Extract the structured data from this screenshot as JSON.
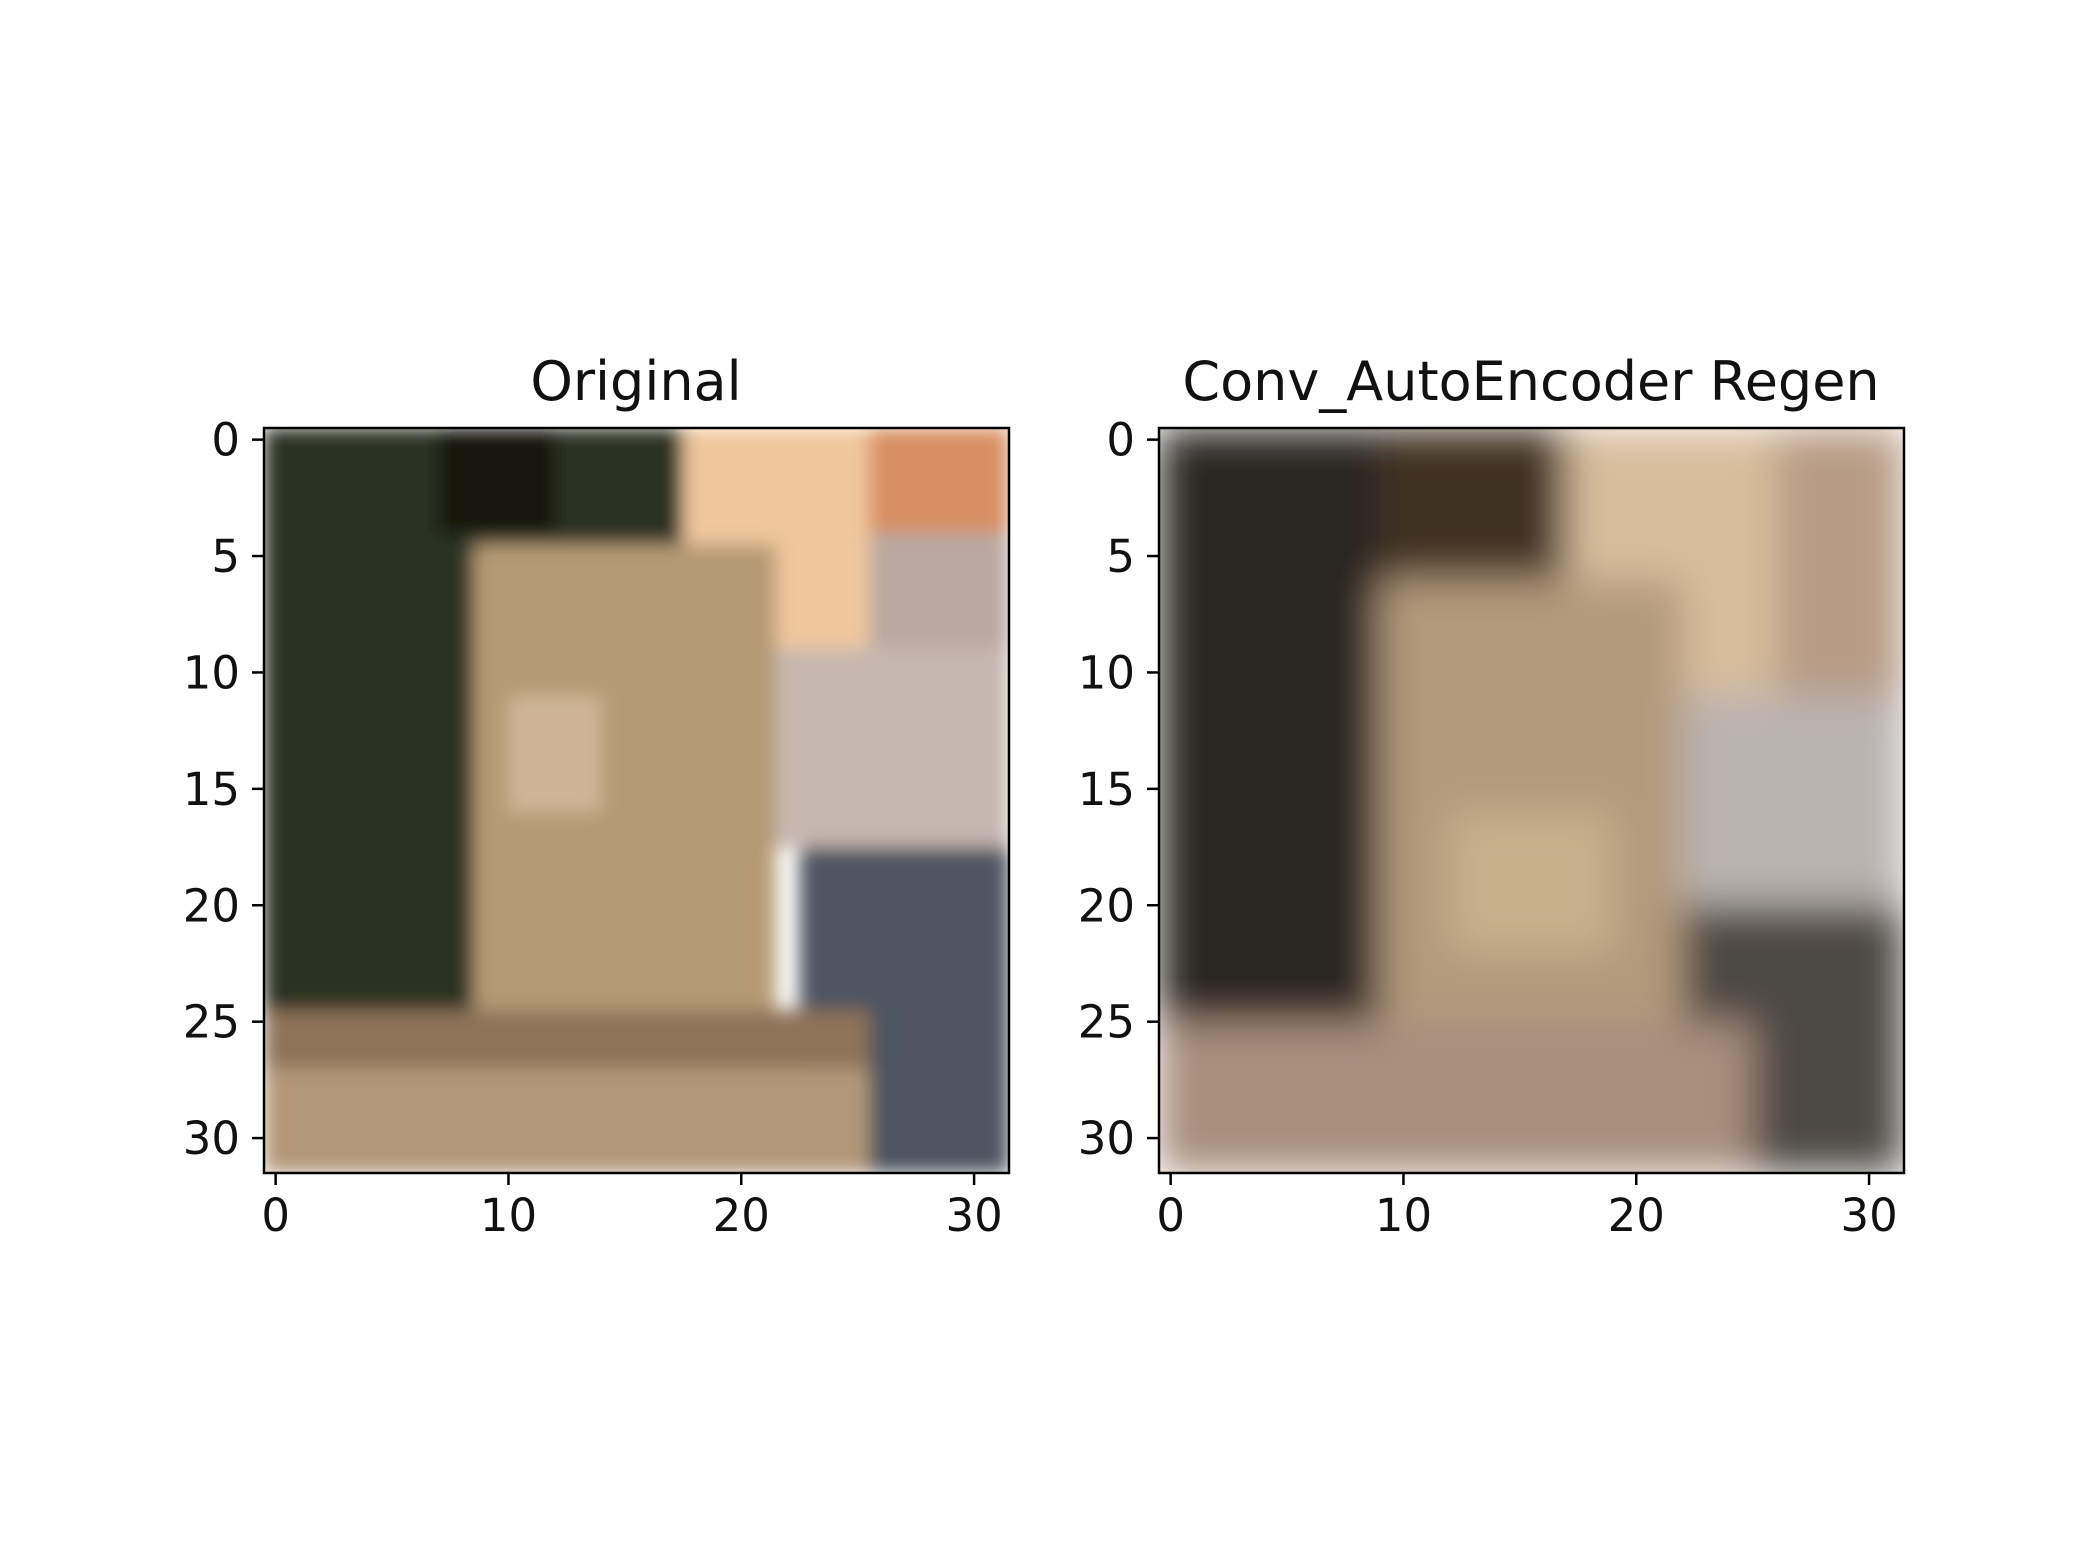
{
  "chart_data": [
    {
      "type": "image",
      "title": "Original",
      "xlabel": "",
      "ylabel": "",
      "xlim": [
        -0.5,
        31.5
      ],
      "ylim": [
        31.5,
        -0.5
      ],
      "xticks": [
        0,
        10,
        20,
        30
      ],
      "yticks": [
        0,
        5,
        10,
        15,
        20,
        25,
        30
      ],
      "image_size": [
        32,
        32
      ],
      "color_regions": [
        {
          "x": [
            -0.5,
            17.5
          ],
          "y": [
            -0.5,
            24.5
          ],
          "color": "#2a3222"
        },
        {
          "x": [
            7,
            12
          ],
          "y": [
            -0.5,
            4
          ],
          "color": "#17150f"
        },
        {
          "x": [
            17.5,
            25.5
          ],
          "y": [
            -0.5,
            9
          ],
          "color": "#f0c79e"
        },
        {
          "x": [
            25.5,
            31.5
          ],
          "y": [
            -0.5,
            4
          ],
          "color": "#d88f62"
        },
        {
          "x": [
            25.5,
            31.5
          ],
          "y": [
            4,
            9
          ],
          "color": "#b9a9a0"
        },
        {
          "x": [
            8.5,
            21.5
          ],
          "y": [
            4.5,
            25
          ],
          "color": "#b69a75"
        },
        {
          "x": [
            10,
            14
          ],
          "y": [
            11,
            16
          ],
          "color": "#cfb596"
        },
        {
          "x": [
            21.5,
            31.5
          ],
          "y": [
            9,
            17.5
          ],
          "color": "#c6b7b0"
        },
        {
          "x": [
            22.5,
            31.5
          ],
          "y": [
            17.5,
            31.5
          ],
          "color": "#4e5560"
        },
        {
          "x": [
            -0.5,
            25.5
          ],
          "y": [
            24.5,
            27
          ],
          "color": "#8f7258"
        },
        {
          "x": [
            -0.5,
            25.5
          ],
          "y": [
            27,
            31.5
          ],
          "color": "#b49778"
        }
      ]
    },
    {
      "type": "image",
      "title": "Conv_AutoEncoder Regen",
      "xlabel": "",
      "ylabel": "",
      "xlim": [
        -0.5,
        31.5
      ],
      "ylim": [
        31.5,
        -0.5
      ],
      "xticks": [
        0,
        10,
        20,
        30
      ],
      "yticks": [
        0,
        5,
        10,
        15,
        20,
        25,
        30
      ],
      "image_size": [
        32,
        32
      ],
      "color_regions": [
        {
          "x": [
            -0.5,
            9
          ],
          "y": [
            -0.5,
            25
          ],
          "color": "#2b2724"
        },
        {
          "x": [
            9,
            17
          ],
          "y": [
            -0.5,
            6
          ],
          "color": "#3f3122"
        },
        {
          "x": [
            17,
            26
          ],
          "y": [
            -0.5,
            11
          ],
          "color": "#d8bd9c"
        },
        {
          "x": [
            26,
            31.5
          ],
          "y": [
            -0.5,
            11
          ],
          "color": "#b89b84"
        },
        {
          "x": [
            9,
            22
          ],
          "y": [
            6,
            25
          ],
          "color": "#b49a7c"
        },
        {
          "x": [
            12,
            19
          ],
          "y": [
            16,
            22
          ],
          "color": "#c8b08d"
        },
        {
          "x": [
            22,
            31.5
          ],
          "y": [
            11,
            20
          ],
          "color": "#b9b3b0"
        },
        {
          "x": [
            22,
            31.5
          ],
          "y": [
            20,
            31.5
          ],
          "color": "#4d4945"
        },
        {
          "x": [
            -0.5,
            25
          ],
          "y": [
            25,
            31.5
          ],
          "color": "#a88e7d"
        }
      ]
    }
  ]
}
